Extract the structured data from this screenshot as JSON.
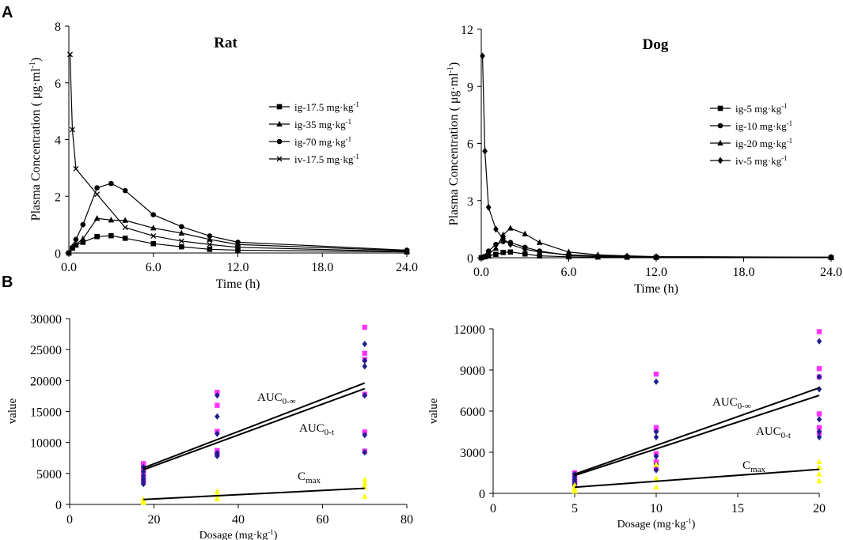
{
  "panels": {
    "a": "A",
    "b": "B"
  },
  "chart_data": [
    {
      "type": "line",
      "title": "Rat",
      "xlabel": "Time (h)",
      "ylabel": "Plasma Concentration ( μg·ml",
      "ylabel_sup": "-1",
      "ylabel_end": ")",
      "xlim": [
        0,
        24
      ],
      "ylim": [
        0,
        8
      ],
      "xticks": [
        0,
        6,
        12,
        18,
        24
      ],
      "xtick_labels": [
        "0.0",
        "6.0",
        "12.0",
        "18.0",
        "24.0"
      ],
      "yticks": [
        0,
        2,
        4,
        6,
        8
      ],
      "ytick_labels": [
        "0",
        "2",
        "4",
        "6",
        "8"
      ],
      "series": [
        {
          "name": "ig-17.5 mg·kg",
          "sup": "-1",
          "marker": "square",
          "x": [
            0,
            0.25,
            0.5,
            1,
            2,
            3,
            4,
            6,
            8,
            10,
            12,
            24
          ],
          "y": [
            0,
            0.17,
            0.28,
            0.38,
            0.58,
            0.61,
            0.52,
            0.33,
            0.22,
            0.13,
            0.1,
            0.04
          ]
        },
        {
          "name": "ig-35 mg·kg",
          "sup": "-1",
          "marker": "triangle",
          "x": [
            0,
            0.25,
            0.5,
            1,
            2,
            3,
            4,
            6,
            8,
            10,
            12,
            24
          ],
          "y": [
            0,
            0.22,
            0.3,
            0.5,
            1.22,
            1.16,
            1.15,
            0.88,
            0.7,
            0.48,
            0.3,
            0.08
          ]
        },
        {
          "name": "ig-70 mg·kg",
          "sup": "-1",
          "marker": "circle",
          "x": [
            0,
            0.5,
            1,
            2,
            3,
            4,
            6,
            8,
            10,
            12,
            24
          ],
          "y": [
            0,
            0.48,
            1.0,
            2.3,
            2.45,
            2.2,
            1.35,
            0.93,
            0.6,
            0.38,
            0.1
          ]
        },
        {
          "name": "iv-17.5 mg·kg",
          "sup": "-1",
          "marker": "x",
          "x": [
            0.083,
            0.25,
            0.5,
            2,
            4,
            6,
            8,
            10,
            12,
            24
          ],
          "y": [
            7.0,
            4.35,
            2.97,
            2.07,
            0.9,
            0.6,
            0.42,
            0.3,
            0.2,
            0.05
          ]
        }
      ]
    },
    {
      "type": "line",
      "title": "Dog",
      "xlabel": "Time (h)",
      "ylabel": "Plasma Concentration ( μg·ml",
      "ylabel_sup": "-1",
      "ylabel_end": ")",
      "xlim": [
        0,
        24
      ],
      "ylim": [
        0,
        12
      ],
      "xticks": [
        0,
        6,
        12,
        18,
        24
      ],
      "xtick_labels": [
        "0.0",
        "6.0",
        "12.0",
        "18.0",
        "24.0"
      ],
      "yticks": [
        0,
        3,
        6,
        9,
        12
      ],
      "ytick_labels": [
        "0",
        "3",
        "6",
        "9",
        "12"
      ],
      "series": [
        {
          "name": "ig-5 mg·kg",
          "sup": "-1",
          "marker": "square",
          "x": [
            0,
            0.25,
            0.5,
            1,
            1.5,
            2,
            3,
            4,
            6,
            8,
            10,
            12,
            24
          ],
          "y": [
            0,
            0.05,
            0.1,
            0.18,
            0.28,
            0.3,
            0.2,
            0.1,
            0.05,
            0.04,
            0.03,
            0.02,
            0.01
          ]
        },
        {
          "name": "ig-10 mg·kg",
          "sup": "-1",
          "marker": "circle",
          "x": [
            0,
            0.5,
            1,
            1.5,
            2,
            3,
            4,
            6,
            8,
            10,
            12,
            24
          ],
          "y": [
            0,
            0.35,
            0.7,
            0.85,
            0.8,
            0.55,
            0.35,
            0.12,
            0.08,
            0.06,
            0.04,
            0.02
          ]
        },
        {
          "name": "ig-20 mg·kg",
          "sup": "-1",
          "marker": "triangle",
          "x": [
            0,
            0.5,
            1,
            1.5,
            2,
            3,
            4,
            6,
            8,
            10,
            12,
            24
          ],
          "y": [
            0,
            0.2,
            0.5,
            1.2,
            1.55,
            1.25,
            0.8,
            0.3,
            0.15,
            0.1,
            0.06,
            0.03
          ]
        },
        {
          "name": "iv-5 mg·kg",
          "sup": "-1",
          "marker": "diamond",
          "x": [
            0.083,
            0.25,
            0.5,
            1,
            1.5,
            2,
            3,
            4,
            6,
            8,
            10,
            12,
            24
          ],
          "y": [
            10.6,
            5.6,
            2.65,
            1.5,
            1.0,
            0.7,
            0.45,
            0.3,
            0.15,
            0.1,
            0.07,
            0.05,
            0.02
          ]
        }
      ]
    },
    {
      "type": "scatter",
      "title": "",
      "xlabel": "Dosage (mg·kg",
      "xlabel_sup": "-1",
      "xlabel_end": ")",
      "ylabel": "value",
      "xlim": [
        0,
        80
      ],
      "ylim": [
        0,
        30000
      ],
      "xticks": [
        0,
        20,
        40,
        60,
        80
      ],
      "xtick_labels": [
        "0",
        "20",
        "40",
        "60",
        "80"
      ],
      "yticks": [
        0,
        5000,
        10000,
        15000,
        20000,
        25000,
        30000
      ],
      "ytick_labels": [
        "0",
        "5000",
        "10000",
        "15000",
        "20000",
        "25000",
        "30000"
      ],
      "series": [
        {
          "name": "AUC0-∞",
          "color": "#ff33ff",
          "marker": "square",
          "x": [
            17.5,
            17.5,
            17.5,
            17.5,
            17.5,
            17.5,
            35,
            35,
            35,
            35,
            35,
            35,
            70,
            70,
            70,
            70,
            70,
            70
          ],
          "y": [
            6600,
            5800,
            5000,
            4400,
            4000,
            3600,
            18100,
            16000,
            11800,
            8700,
            8400,
            8100,
            28600,
            24400,
            23400,
            17800,
            11700,
            8600
          ]
        },
        {
          "name": "AUC0-t",
          "color": "#1f1f8f",
          "marker": "diamond",
          "x": [
            17.5,
            17.5,
            17.5,
            17.5,
            17.5,
            17.5,
            35,
            35,
            35,
            35,
            35,
            35,
            70,
            70,
            70,
            70,
            70,
            70
          ],
          "y": [
            6000,
            5300,
            4600,
            4100,
            3700,
            3300,
            17600,
            14200,
            11400,
            8300,
            8000,
            7800,
            25900,
            23200,
            22300,
            17600,
            11200,
            8400
          ]
        },
        {
          "name": "Cmax",
          "color": "#ffff00",
          "marker": "triangle",
          "x": [
            17.5,
            17.5,
            17.5,
            35,
            35,
            35,
            70,
            70,
            70,
            70
          ],
          "y": [
            900,
            600,
            300,
            2100,
            1500,
            900,
            4000,
            3400,
            2800,
            1300
          ]
        }
      ],
      "fit_lines": [
        {
          "name": "AUC0-∞",
          "label": "AUC",
          "sub": "0-∞",
          "x": [
            17.5,
            70
          ],
          "y": [
            5900,
            19600
          ]
        },
        {
          "name": "AUC0-t",
          "label": "AUC",
          "sub": "0-t",
          "x": [
            17.5,
            70
          ],
          "y": [
            5600,
            18700
          ]
        },
        {
          "name": "Cmax",
          "label": "C",
          "sub": "max",
          "x": [
            17.5,
            70
          ],
          "y": [
            800,
            2600
          ]
        }
      ]
    },
    {
      "type": "scatter",
      "title": "",
      "xlabel": "Dosage (mg·kg",
      "xlabel_sup": "-1",
      "xlabel_end": ")",
      "ylabel": "value",
      "xlim": [
        0,
        20
      ],
      "ylim": [
        0,
        12000
      ],
      "xticks": [
        0,
        5,
        10,
        15,
        20
      ],
      "xtick_labels": [
        "0",
        "5",
        "10",
        "15",
        "20"
      ],
      "yticks": [
        0,
        3000,
        6000,
        9000,
        12000
      ],
      "ytick_labels": [
        "0",
        "3000",
        "6000",
        "9000",
        "12000"
      ],
      "series": [
        {
          "name": "AUC0-∞",
          "color": "#ff33ff",
          "marker": "square",
          "x": [
            5,
            5,
            5,
            5,
            5,
            5,
            10,
            10,
            10,
            10,
            10,
            10,
            20,
            20,
            20,
            20,
            20,
            20
          ],
          "y": [
            1500,
            1300,
            1100,
            950,
            800,
            650,
            8700,
            4800,
            4600,
            2900,
            2300,
            1800,
            11800,
            9100,
            8500,
            5800,
            4800,
            4400
          ]
        },
        {
          "name": "AUC0-t",
          "color": "#1f1f8f",
          "marker": "diamond",
          "x": [
            5,
            5,
            5,
            5,
            5,
            5,
            10,
            10,
            10,
            10,
            10,
            10,
            20,
            20,
            20,
            20,
            20,
            20
          ],
          "y": [
            1400,
            1200,
            1000,
            850,
            700,
            600,
            8150,
            4500,
            4100,
            2700,
            2100,
            1700,
            11100,
            8500,
            7600,
            5400,
            4500,
            4100
          ]
        },
        {
          "name": "Cmax",
          "color": "#ffff00",
          "marker": "triangle",
          "x": [
            5,
            5,
            5,
            5,
            10,
            10,
            10,
            20,
            20,
            20,
            20
          ],
          "y": [
            600,
            400,
            250,
            150,
            2100,
            1100,
            450,
            2300,
            1900,
            1400,
            900
          ]
        }
      ],
      "fit_lines": [
        {
          "name": "AUC0-∞",
          "label": "AUC",
          "sub": "0-∞",
          "x": [
            5,
            20
          ],
          "y": [
            1400,
            7700
          ]
        },
        {
          "name": "AUC0-t",
          "label": "AUC",
          "sub": "0-t",
          "x": [
            5,
            20
          ],
          "y": [
            1300,
            7150
          ]
        },
        {
          "name": "Cmax",
          "label": "C",
          "sub": "max",
          "x": [
            5,
            20
          ],
          "y": [
            450,
            1750
          ]
        }
      ]
    }
  ]
}
